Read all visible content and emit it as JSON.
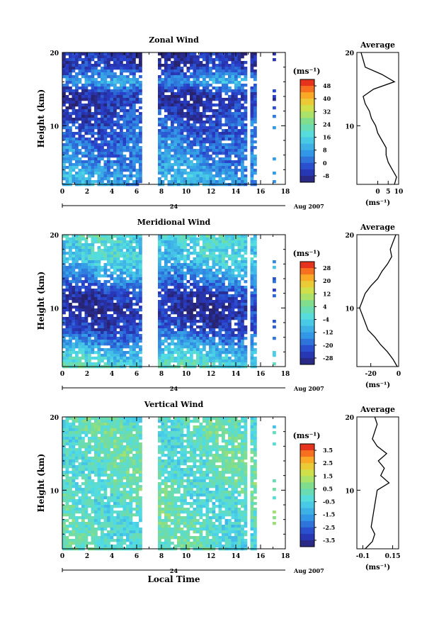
{
  "chart_data": [
    {
      "type": "heatmap",
      "title": "Zonal Wind",
      "xlabel": "",
      "ylabel": "Height (km)",
      "xlim": [
        0,
        18
      ],
      "ylim": [
        2,
        20
      ],
      "xticks": [
        0,
        2,
        4,
        6,
        8,
        10,
        12,
        14,
        16,
        18
      ],
      "yticks": [
        10,
        20
      ],
      "date_axis": {
        "marker": "24",
        "label": "Aug 2007"
      },
      "gap": [
        6.3,
        7.8
      ],
      "colorbar": {
        "unit": "(ms⁻¹)",
        "ticks": [
          48,
          40,
          32,
          24,
          16,
          8,
          0,
          -8
        ],
        "range": [
          -12,
          52
        ]
      },
      "average": {
        "title": "Average",
        "xlabel": "(ms⁻¹)",
        "xlim": [
          -10,
          10
        ],
        "xticks": [
          0,
          5,
          10
        ],
        "heights": [
          2,
          3,
          4,
          5,
          6,
          7,
          8,
          9,
          10,
          11,
          12,
          13,
          14,
          15,
          16,
          17,
          18,
          19,
          20
        ],
        "values": [
          8,
          9,
          7,
          5,
          4,
          4,
          2,
          0,
          -1,
          -3,
          -4,
          -6,
          -7,
          -2,
          8,
          2,
          -6,
          -7,
          -8
        ]
      }
    },
    {
      "type": "heatmap",
      "title": "Meridional Wind",
      "xlabel": "",
      "ylabel": "Height (km)",
      "xlim": [
        0,
        18
      ],
      "ylim": [
        2,
        20
      ],
      "xticks": [
        0,
        2,
        4,
        6,
        8,
        10,
        12,
        14,
        16,
        18
      ],
      "yticks": [
        10,
        20
      ],
      "date_axis": {
        "marker": "24",
        "label": "Aug 2007"
      },
      "gap": [
        6.3,
        7.8
      ],
      "colorbar": {
        "unit": "(ms⁻¹)",
        "ticks": [
          28,
          20,
          12,
          4,
          -4,
          -12,
          -20,
          -28
        ],
        "range": [
          -32,
          32
        ]
      },
      "average": {
        "title": "Average",
        "xlabel": "(ms⁻¹)",
        "xlim": [
          -30,
          0
        ],
        "xticks": [
          -20,
          0
        ],
        "heights": [
          2,
          3,
          4,
          5,
          6,
          7,
          8,
          9,
          10,
          11,
          12,
          13,
          14,
          15,
          16,
          17,
          18,
          19,
          20
        ],
        "values": [
          -1,
          -4,
          -8,
          -13,
          -17,
          -22,
          -24,
          -26,
          -28,
          -26,
          -24,
          -20,
          -15,
          -12,
          -8,
          -5,
          -6,
          -4,
          -2
        ]
      }
    },
    {
      "type": "heatmap",
      "title": "Vertical Wind",
      "xlabel": "Local Time",
      "ylabel": "Height (km)",
      "xlim": [
        0,
        18
      ],
      "ylim": [
        2,
        20
      ],
      "xticks": [
        0,
        2,
        4,
        6,
        8,
        10,
        12,
        14,
        16,
        18
      ],
      "yticks": [
        10,
        20
      ],
      "date_axis": {
        "marker": "24",
        "label": "Aug 2007"
      },
      "gap": [
        6.3,
        7.8
      ],
      "colorbar": {
        "unit": "(ms⁻¹)",
        "ticks": [
          3.5,
          2.5,
          1.5,
          0.5,
          -0.5,
          -1.5,
          -2.5,
          -3.5
        ],
        "range": [
          -4,
          4
        ]
      },
      "average": {
        "title": "Average",
        "xlabel": "(ms⁻¹)",
        "xlim": [
          -0.15,
          0.2
        ],
        "xticks": [
          -0.1,
          0.15
        ],
        "heights": [
          2,
          3,
          4,
          5,
          6,
          7,
          8,
          9,
          10,
          11,
          12,
          13,
          14,
          15,
          16,
          17,
          18,
          19,
          20
        ],
        "values": [
          -0.08,
          -0.02,
          0.0,
          -0.03,
          -0.02,
          -0.01,
          0.0,
          0.01,
          0.02,
          0.12,
          0.05,
          0.08,
          0.03,
          0.1,
          0.02,
          -0.02,
          0.0,
          0.02,
          0.0
        ]
      }
    }
  ]
}
